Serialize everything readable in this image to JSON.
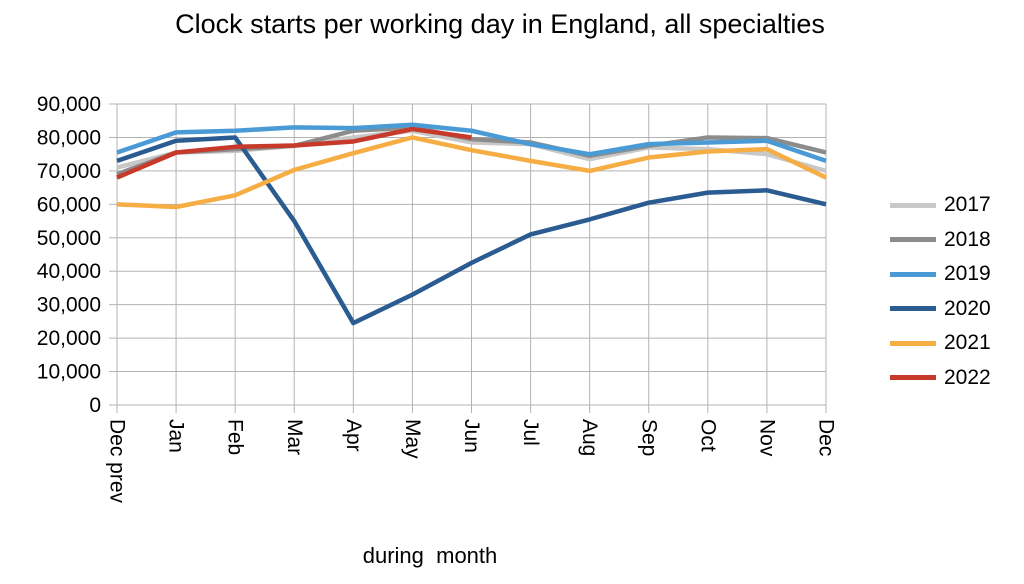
{
  "chart_data": {
    "type": "line",
    "title": "Clock starts per working day in England, all specialties",
    "xlabel": "during  month",
    "ylabel": "",
    "categories": [
      "Dec prev",
      "Jan",
      "Feb",
      "Mar",
      "Apr",
      "May",
      "Jun",
      "Jul",
      "Aug",
      "Sep",
      "Oct",
      "Nov",
      "Dec"
    ],
    "ylim": [
      0,
      90000
    ],
    "yticks": [
      "0",
      "10,000",
      "20,000",
      "30,000",
      "40,000",
      "50,000",
      "60,000",
      "70,000",
      "80,000",
      "90,000"
    ],
    "grid": true,
    "legend_position": "right",
    "series": [
      {
        "name": "2017",
        "color": "#c8c8c8",
        "values": [
          71000,
          75500,
          76000,
          77500,
          80000,
          82000,
          78500,
          78000,
          73500,
          77000,
          76500,
          75000,
          70000
        ]
      },
      {
        "name": "2018",
        "color": "#8c8c8c",
        "values": [
          69000,
          75500,
          76500,
          77500,
          82000,
          83000,
          79500,
          78500,
          74500,
          77500,
          80000,
          79800,
          75500
        ]
      },
      {
        "name": "2019",
        "color": "#4a9bd5",
        "values": [
          75500,
          81500,
          82000,
          83000,
          82800,
          83800,
          82000,
          78000,
          75000,
          78000,
          78500,
          79000,
          73000
        ]
      },
      {
        "name": "2020",
        "color": "#2a5b91",
        "values": [
          73000,
          79000,
          80000,
          55000,
          24500,
          33000,
          42500,
          51000,
          55500,
          60500,
          63500,
          64200,
          60000
        ]
      },
      {
        "name": "2021",
        "color": "#f5ad44",
        "values": [
          60000,
          59200,
          62700,
          70300,
          75300,
          80000,
          76200,
          73000,
          70000,
          74000,
          75800,
          76500,
          68000
        ]
      },
      {
        "name": "2022",
        "color": "#c7392b",
        "values": [
          68000,
          75500,
          77200,
          77600,
          78800,
          82500,
          80000,
          null,
          null,
          null,
          null,
          null,
          null
        ]
      }
    ]
  }
}
